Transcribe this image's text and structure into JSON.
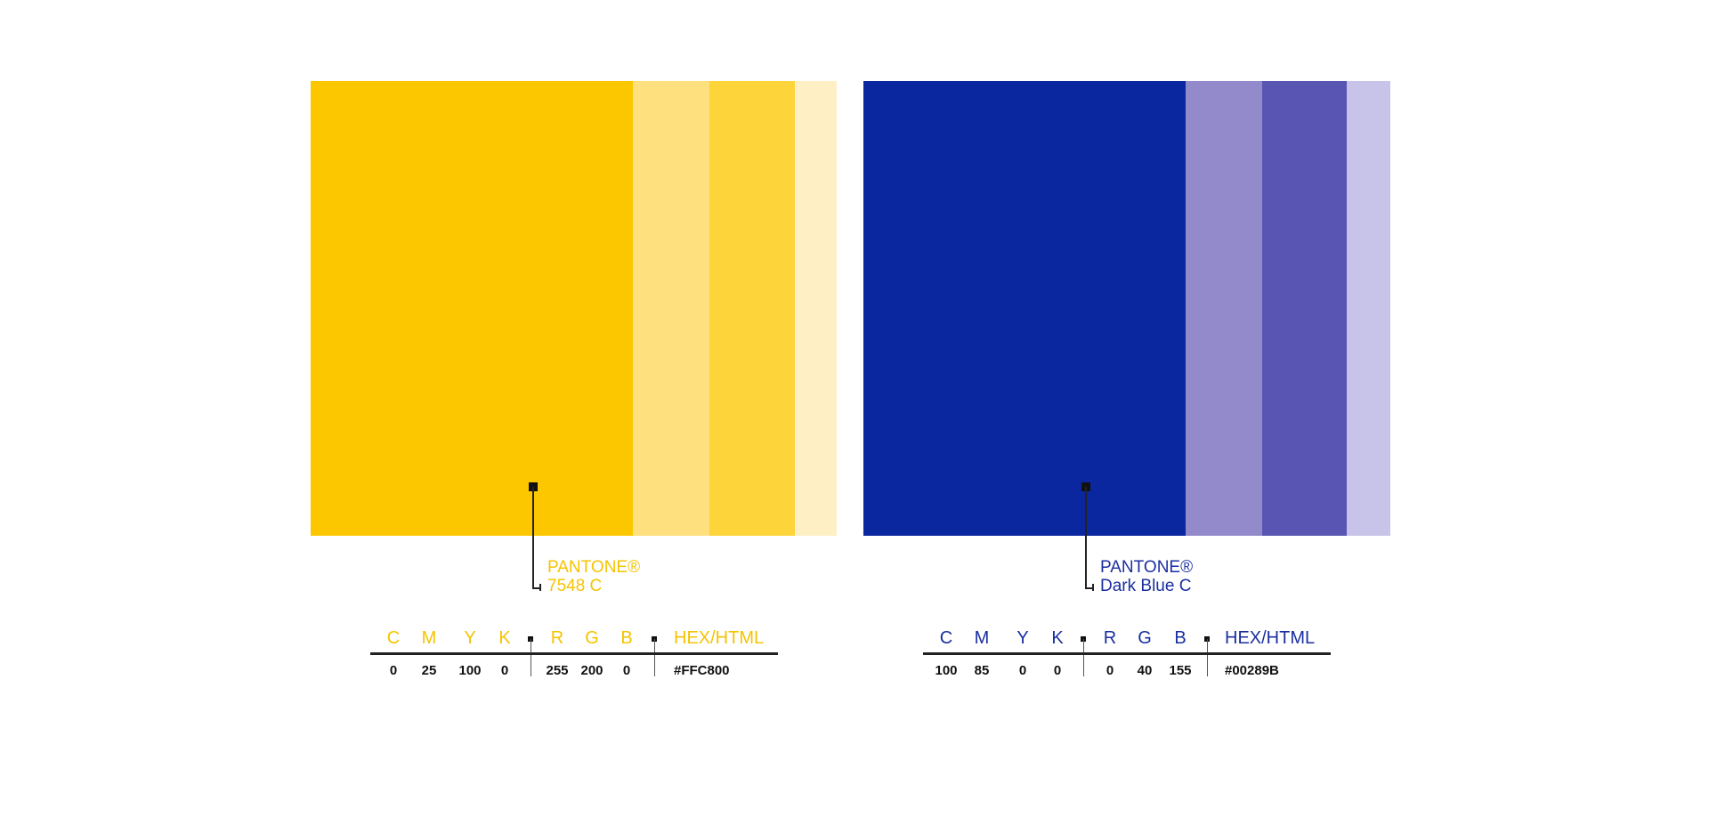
{
  "palettes": [
    {
      "name": "yellow",
      "text_color": "#F5C400",
      "swatch_colors": [
        "#FDC700",
        "#FEE07F",
        "#FED43B",
        "#FEF0C4"
      ],
      "pantone_label": "PANTONE®",
      "pantone_name": "7548 C",
      "headers": {
        "c": "C",
        "m": "M",
        "y": "Y",
        "k": "K",
        "r": "R",
        "g": "G",
        "b": "B",
        "hex": "HEX/HTML"
      },
      "values": {
        "c": "0",
        "m": "25",
        "y": "100",
        "k": "0",
        "r": "255",
        "g": "200",
        "b": "0",
        "hex": "#FFC800"
      }
    },
    {
      "name": "blue",
      "text_color": "#1A2FA0",
      "swatch_colors": [
        "#0A27A0",
        "#938ACB",
        "#5955B3",
        "#C8C3E8"
      ],
      "pantone_label": "PANTONE®",
      "pantone_name": "Dark Blue C",
      "headers": {
        "c": "C",
        "m": "M",
        "y": "Y",
        "k": "K",
        "r": "R",
        "g": "G",
        "b": "B",
        "hex": "HEX/HTML"
      },
      "values": {
        "c": "100",
        "m": "85",
        "y": "0",
        "k": "0",
        "r": "0",
        "g": "40",
        "b": "155",
        "hex": "#00289B"
      }
    }
  ]
}
